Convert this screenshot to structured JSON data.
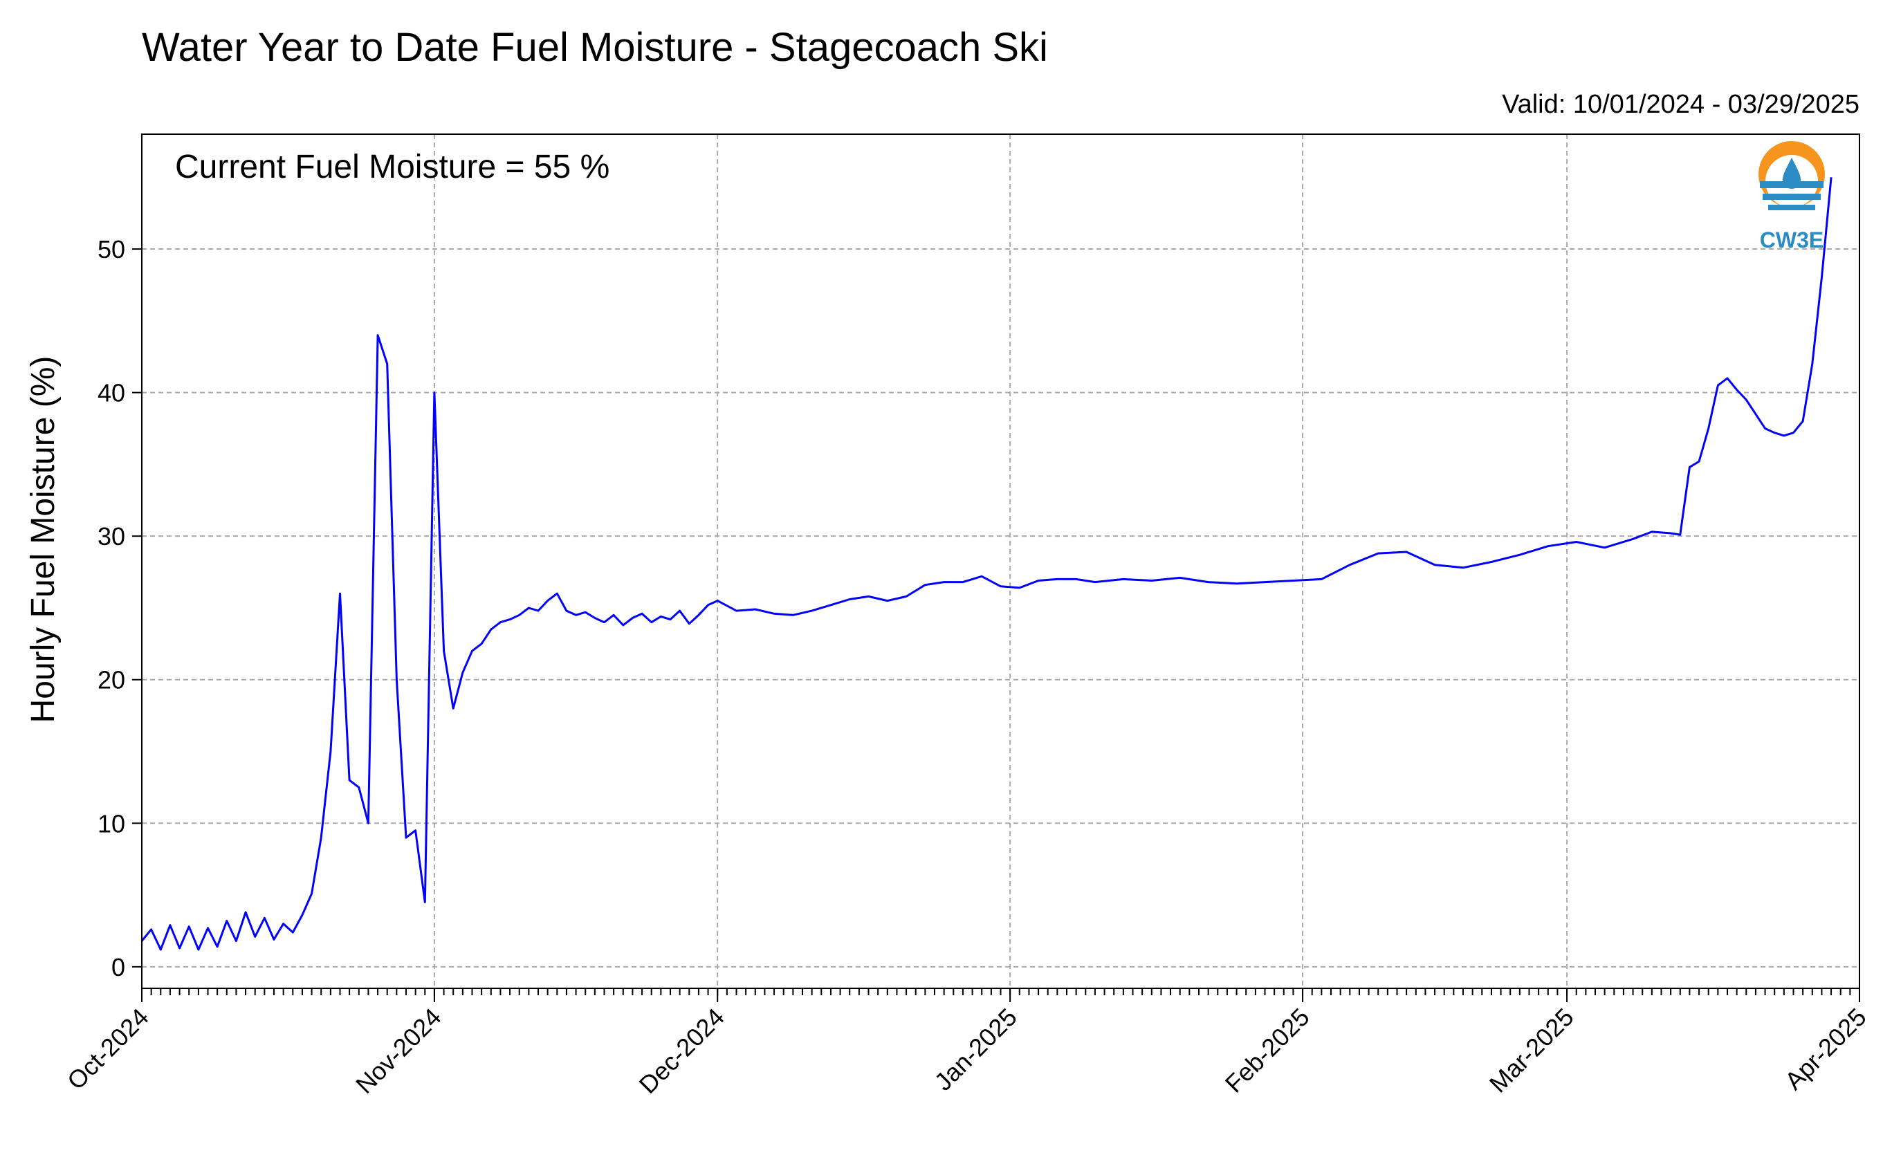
{
  "chart_data": {
    "type": "line",
    "title": "Water Year to Date Fuel Moisture - Stagecoach Ski",
    "subtitle": "Valid: 10/01/2024 - 03/29/2025",
    "xlabel": "",
    "ylabel": "Hourly Fuel Moisture (%)",
    "annotation": "Current Fuel Moisture = 55 %",
    "logo_text": "CW3E",
    "x_range": [
      "2024-10-01",
      "2025-04-01"
    ],
    "ylim": [
      -1.5,
      58
    ],
    "yticks": [
      0,
      10,
      20,
      30,
      40,
      50
    ],
    "x_ticks": [
      {
        "date": "2024-10-01",
        "label": "Oct-2024"
      },
      {
        "date": "2024-11-01",
        "label": "Nov-2024"
      },
      {
        "date": "2024-12-01",
        "label": "Dec-2024"
      },
      {
        "date": "2025-01-01",
        "label": "Jan-2025"
      },
      {
        "date": "2025-02-01",
        "label": "Feb-2025"
      },
      {
        "date": "2025-03-01",
        "label": "Mar-2025"
      },
      {
        "date": "2025-04-01",
        "label": "Apr-2025"
      }
    ],
    "grid": true,
    "line_color": "#0000ff",
    "series": [
      {
        "x": [
          "2024-10-01",
          "2024-10-02",
          "2024-10-03",
          "2024-10-04",
          "2024-10-05",
          "2024-10-06",
          "2024-10-07",
          "2024-10-08",
          "2024-10-09",
          "2024-10-10",
          "2024-10-11",
          "2024-10-12",
          "2024-10-13",
          "2024-10-14",
          "2024-10-15",
          "2024-10-16",
          "2024-10-17",
          "2024-10-18",
          "2024-10-19",
          "2024-10-20",
          "2024-10-21",
          "2024-10-22",
          "2024-10-23",
          "2024-10-24",
          "2024-10-25",
          "2024-10-26",
          "2024-10-27",
          "2024-10-28",
          "2024-10-29",
          "2024-10-30",
          "2024-10-31",
          "2024-11-01",
          "2024-11-02",
          "2024-11-03",
          "2024-11-04",
          "2024-11-05",
          "2024-11-06",
          "2024-11-07",
          "2024-11-08",
          "2024-11-09",
          "2024-11-10",
          "2024-11-11",
          "2024-11-12",
          "2024-11-13",
          "2024-11-14",
          "2024-11-15",
          "2024-11-16",
          "2024-11-17",
          "2024-11-18",
          "2024-11-19",
          "2024-11-20",
          "2024-11-21",
          "2024-11-22",
          "2024-11-23",
          "2024-11-24",
          "2024-11-25",
          "2024-11-26",
          "2024-11-27",
          "2024-11-28",
          "2024-11-29",
          "2024-11-30",
          "2024-12-01",
          "2024-12-03",
          "2024-12-05",
          "2024-12-07",
          "2024-12-09",
          "2024-12-11",
          "2024-12-13",
          "2024-12-15",
          "2024-12-17",
          "2024-12-19",
          "2024-12-21",
          "2024-12-23",
          "2024-12-25",
          "2024-12-27",
          "2024-12-29",
          "2024-12-31",
          "2025-01-02",
          "2025-01-04",
          "2025-01-06",
          "2025-01-08",
          "2025-01-10",
          "2025-01-13",
          "2025-01-16",
          "2025-01-19",
          "2025-01-22",
          "2025-01-25",
          "2025-01-28",
          "2025-01-31",
          "2025-02-03",
          "2025-02-06",
          "2025-02-09",
          "2025-02-12",
          "2025-02-15",
          "2025-02-18",
          "2025-02-21",
          "2025-02-24",
          "2025-02-27",
          "2025-03-02",
          "2025-03-05",
          "2025-03-08",
          "2025-03-10",
          "2025-03-12",
          "2025-03-13",
          "2025-03-14",
          "2025-03-15",
          "2025-03-16",
          "2025-03-17",
          "2025-03-18",
          "2025-03-19",
          "2025-03-20",
          "2025-03-21",
          "2025-03-22",
          "2025-03-23",
          "2025-03-24",
          "2025-03-25",
          "2025-03-26",
          "2025-03-27",
          "2025-03-28",
          "2025-03-29"
        ],
        "y": [
          1.8,
          2.6,
          1.2,
          2.9,
          1.3,
          2.8,
          1.2,
          2.7,
          1.4,
          3.2,
          1.8,
          3.8,
          2.1,
          3.4,
          1.9,
          3.0,
          2.4,
          3.6,
          5.1,
          9.0,
          15.0,
          26.0,
          13.0,
          12.5,
          10.0,
          44.0,
          42.0,
          20.0,
          9.0,
          9.5,
          4.5,
          40.0,
          22.0,
          18.0,
          20.5,
          22.0,
          22.5,
          23.5,
          24.0,
          24.2,
          24.5,
          25.0,
          24.8,
          25.5,
          26.0,
          24.8,
          24.5,
          24.7,
          24.3,
          24.0,
          24.5,
          23.8,
          24.3,
          24.6,
          24.0,
          24.4,
          24.2,
          24.8,
          23.9,
          24.5,
          25.2,
          25.5,
          24.8,
          24.9,
          24.6,
          24.5,
          24.8,
          25.2,
          25.6,
          25.8,
          25.5,
          25.8,
          26.6,
          26.8,
          26.8,
          27.2,
          26.5,
          26.4,
          26.9,
          27.0,
          27.0,
          26.8,
          27.0,
          26.9,
          27.1,
          26.8,
          26.7,
          26.8,
          26.9,
          27.0,
          28.0,
          28.8,
          28.9,
          28.0,
          27.8,
          28.2,
          28.7,
          29.3,
          29.6,
          29.2,
          29.8,
          30.3,
          30.2,
          30.1,
          34.8,
          35.2,
          37.5,
          40.5,
          41.0,
          40.2,
          39.5,
          38.5,
          37.5,
          37.2,
          37.0,
          37.2,
          38.0,
          42.0,
          48.0,
          55.0
        ]
      }
    ]
  }
}
